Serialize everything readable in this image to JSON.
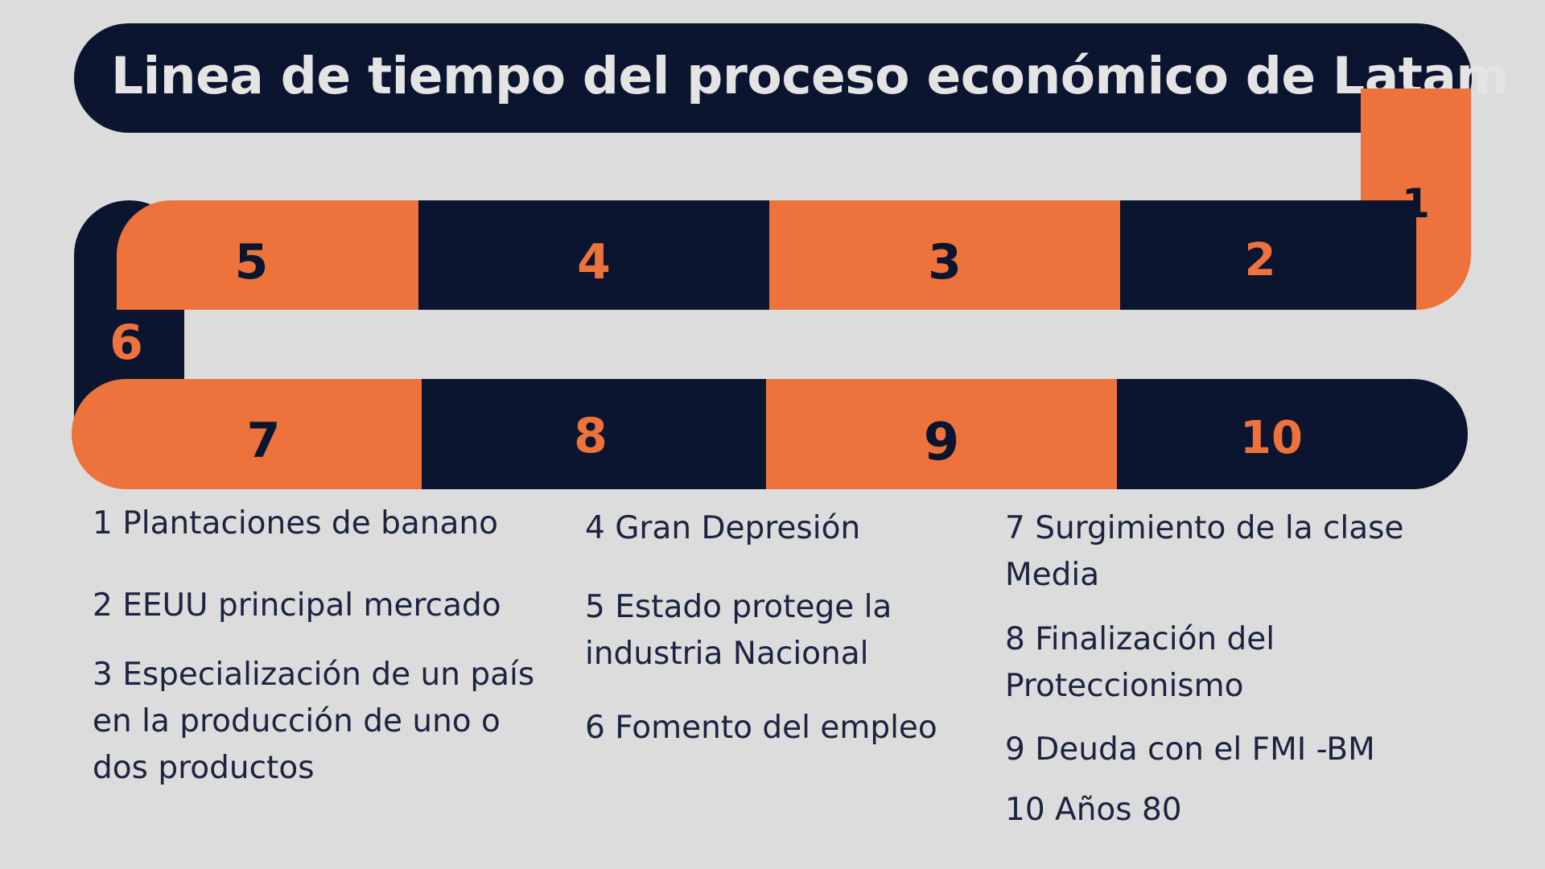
{
  "title": "Linea de tiempo del proceso económico de Latam",
  "timeline": {
    "n1": "1",
    "n2": "2",
    "n3": "3",
    "n4": "4",
    "n5": "5",
    "n6": "6",
    "n7": "7",
    "n8": "8",
    "n9": "9",
    "n10": "10"
  },
  "legend": {
    "items": [
      "1 Plantaciones de banano",
      "2 EEUU principal mercado",
      "3 Especialización de un país en la producción de uno o dos productos",
      "4 Gran Depresión",
      "5 Estado protege la industria Nacional",
      "6 Fomento del empleo",
      "7 Surgimiento de la clase Media",
      "8 Finalización del Proteccionismo",
      "9 Deuda con el FMI -BM",
      "10 Años 80"
    ]
  },
  "colors": {
    "navy": "#0b1530",
    "orange": "#ee723b",
    "background": "#dcdcdc"
  }
}
